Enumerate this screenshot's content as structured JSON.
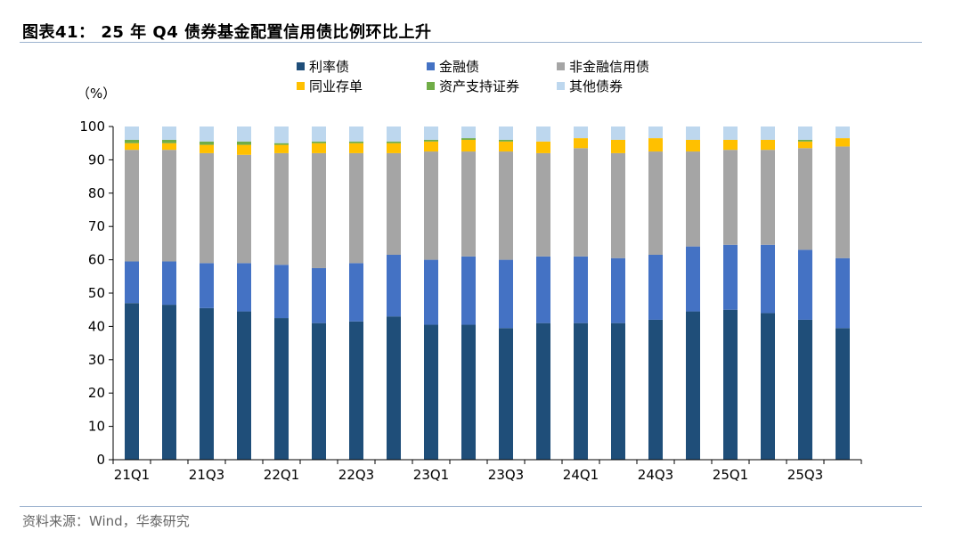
{
  "header": {
    "title": "图表41： 25 年 Q4 债券基金配置信用债比例环比上升"
  },
  "footer": {
    "source": "资料来源：Wind，华泰研究"
  },
  "colors": {
    "利率债": "#1f4e79",
    "金融债": "#4472c4",
    "非金融信用债": "#a5a5a5",
    "同业存单": "#ffc000",
    "资产支持证券": "#70ad47",
    "其他债券": "#bdd7ee"
  },
  "chart_data": {
    "type": "bar",
    "stacked": true,
    "ylabel": "（%）",
    "ylim": [
      0,
      100
    ],
    "yticks": [
      0,
      10,
      20,
      30,
      40,
      50,
      60,
      70,
      80,
      90,
      100
    ],
    "legend_position": "top",
    "grid": false,
    "categories": [
      "21Q1",
      "21Q2",
      "21Q3",
      "21Q4",
      "22Q1",
      "22Q2",
      "22Q3",
      "22Q4",
      "23Q1",
      "23Q2",
      "23Q3",
      "23Q4",
      "24Q1",
      "24Q2",
      "24Q3",
      "24Q4",
      "25Q1",
      "25Q2",
      "25Q3",
      "25Q4"
    ],
    "tick_labels": [
      "21Q1",
      "21Q3",
      "22Q1",
      "22Q3",
      "23Q1",
      "23Q3",
      "24Q1",
      "24Q3",
      "25Q1",
      "25Q3"
    ],
    "series": [
      {
        "name": "利率债",
        "values": [
          47.0,
          46.5,
          45.5,
          44.5,
          42.5,
          41.0,
          41.5,
          43.0,
          40.5,
          40.5,
          39.5,
          41.0,
          41.0,
          41.0,
          42.0,
          44.5,
          45.0,
          44.0,
          42.0,
          39.5
        ]
      },
      {
        "name": "金融债",
        "values": [
          12.5,
          13.0,
          13.5,
          14.5,
          16.0,
          16.5,
          17.5,
          18.5,
          19.5,
          20.5,
          20.5,
          20.0,
          20.0,
          19.5,
          19.5,
          19.5,
          19.5,
          20.5,
          21.0,
          21.0
        ]
      },
      {
        "name": "非金融信用债",
        "values": [
          33.5,
          33.5,
          33.0,
          32.5,
          33.5,
          34.5,
          33.0,
          30.5,
          32.5,
          31.5,
          32.5,
          31.0,
          32.5,
          31.5,
          31.0,
          28.5,
          28.5,
          28.5,
          30.5,
          33.5
        ]
      },
      {
        "name": "同业存单",
        "values": [
          2.0,
          2.0,
          2.5,
          3.0,
          2.5,
          3.0,
          3.0,
          3.0,
          3.0,
          3.5,
          3.0,
          3.5,
          3.0,
          4.0,
          4.0,
          3.5,
          3.0,
          3.0,
          2.0,
          2.5
        ]
      },
      {
        "name": "资产支持证券",
        "values": [
          1.0,
          1.0,
          1.0,
          1.0,
          0.5,
          0.5,
          0.5,
          0.5,
          0.5,
          0.5,
          0.5,
          0.0,
          0.0,
          0.0,
          0.0,
          0.0,
          0.0,
          0.0,
          0.5,
          0.0
        ]
      },
      {
        "name": "其他债券",
        "values": [
          4.0,
          4.0,
          4.5,
          4.5,
          5.0,
          4.5,
          4.5,
          4.5,
          4.0,
          3.5,
          4.0,
          4.5,
          3.5,
          4.0,
          3.5,
          4.0,
          4.0,
          4.0,
          4.0,
          3.5
        ]
      }
    ]
  }
}
